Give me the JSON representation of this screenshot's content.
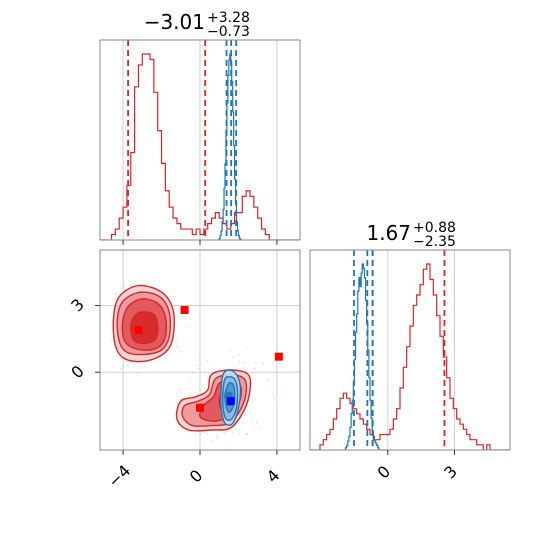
{
  "chart_data": {
    "type": "corner",
    "parameters": [
      {
        "title_main": "−3.01",
        "title_plus": "+3.28",
        "title_minus": "−0.73",
        "range": [
          -5.2,
          5.2
        ],
        "ticks": [
          -4,
          0,
          4
        ],
        "tick_labels": [
          "−4",
          "0",
          "4"
        ]
      },
      {
        "title_main": "1.67",
        "title_plus": "+0.88",
        "title_minus": "−2.35",
        "range": [
          -3.5,
          5.5
        ],
        "ticks": [
          0,
          3
        ],
        "tick_labels": [
          "0",
          "3"
        ]
      }
    ],
    "grid": true,
    "series": [
      {
        "color": "#d62728",
        "hist1": {
          "bin_start": -5.2,
          "bin_width": 0.2,
          "counts": [
            0,
            0,
            0,
            1,
            2,
            4,
            6,
            10,
            16,
            28,
            32,
            34,
            34,
            33,
            27,
            20,
            14,
            9,
            6,
            4,
            3,
            2,
            2,
            2,
            1,
            2,
            1,
            2,
            3,
            4,
            5,
            4,
            3,
            2,
            3,
            5,
            5,
            8,
            9,
            8,
            6,
            4,
            2,
            1,
            0,
            0,
            0,
            0,
            0,
            0,
            0,
            0
          ]
        },
        "hist1_lines": [
          -3.74,
          0.27
        ],
        "hist2": {
          "bin_start": -3.5,
          "bin_width": 0.15,
          "counts": [
            0,
            0,
            0,
            1,
            2,
            3,
            4,
            6,
            8,
            10,
            11,
            10,
            9,
            8,
            7,
            6,
            5,
            4,
            3,
            2,
            2,
            3,
            3,
            3,
            4,
            6,
            8,
            12,
            16,
            20,
            24,
            28,
            30,
            32,
            35,
            36,
            33,
            30,
            26,
            22,
            18,
            14,
            10,
            8,
            6,
            5,
            4,
            3,
            2,
            2,
            1,
            1,
            0,
            1,
            0,
            0,
            0,
            0,
            0,
            0
          ]
        },
        "hist2_lines": [
          -0.68,
          2.55
        ],
        "contour_fills": [
          "#f7cfd1",
          "#ef9498",
          "#e05257",
          "#d62728"
        ],
        "contour_stroke": "#d62728",
        "clusters": [
          {
            "name": "upper-left",
            "levels": [
              [
                [
                  -3.2,
                  3.9
                ],
                [
                  -2.0,
                  3.6
                ],
                [
                  -1.4,
                  2.8
                ],
                [
                  -1.4,
                  1.6
                ],
                [
                  -1.8,
                  0.9
                ],
                [
                  -2.8,
                  0.5
                ],
                [
                  -3.9,
                  0.6
                ],
                [
                  -4.4,
                  1.2
                ],
                [
                  -4.5,
                  2.4
                ],
                [
                  -4.2,
                  3.4
                ]
              ],
              [
                [
                  -3.1,
                  3.6
                ],
                [
                  -2.1,
                  3.4
                ],
                [
                  -1.6,
                  2.7
                ],
                [
                  -1.6,
                  1.6
                ],
                [
                  -2.0,
                  1.0
                ],
                [
                  -2.9,
                  0.8
                ],
                [
                  -3.8,
                  0.9
                ],
                [
                  -4.2,
                  1.4
                ],
                [
                  -4.3,
                  2.4
                ],
                [
                  -4.0,
                  3.2
                ]
              ],
              [
                [
                  -3.0,
                  3.3
                ],
                [
                  -2.2,
                  3.1
                ],
                [
                  -1.8,
                  2.5
                ],
                [
                  -1.8,
                  1.6
                ],
                [
                  -2.2,
                  1.1
                ],
                [
                  -3.0,
                  1.0
                ],
                [
                  -3.7,
                  1.2
                ],
                [
                  -4.0,
                  1.6
                ],
                [
                  -4.0,
                  2.4
                ],
                [
                  -3.7,
                  3.0
                ]
              ],
              [
                [
                  -3.1,
                  2.7
                ],
                [
                  -2.4,
                  2.6
                ],
                [
                  -2.2,
                  2.1
                ],
                [
                  -2.3,
                  1.5
                ],
                [
                  -2.8,
                  1.3
                ],
                [
                  -3.4,
                  1.4
                ],
                [
                  -3.6,
                  1.9
                ],
                [
                  -3.5,
                  2.4
                ]
              ]
            ]
          },
          {
            "name": "lower-middle",
            "levels": [
              [
                [
                  0.6,
                  -0.1
                ],
                [
                  1.6,
                  0.1
                ],
                [
                  2.5,
                  -0.1
                ],
                [
                  2.6,
                  -0.8
                ],
                [
                  2.3,
                  -1.7
                ],
                [
                  1.6,
                  -2.5
                ],
                [
                  0.6,
                  -2.6
                ],
                [
                  -0.6,
                  -2.6
                ],
                [
                  -1.2,
                  -2.1
                ],
                [
                  -1.0,
                  -1.3
                ],
                [
                  -0.2,
                  -1.1
                ],
                [
                  0.4,
                  -0.8
                ]
              ],
              [
                [
                  0.8,
                  -0.3
                ],
                [
                  1.6,
                  -0.1
                ],
                [
                  2.3,
                  -0.3
                ],
                [
                  2.4,
                  -0.9
                ],
                [
                  2.1,
                  -1.7
                ],
                [
                  1.5,
                  -2.3
                ],
                [
                  0.6,
                  -2.4
                ],
                [
                  -0.4,
                  -2.4
                ],
                [
                  -0.9,
                  -2.0
                ],
                [
                  -0.8,
                  -1.5
                ],
                [
                  -0.1,
                  -1.3
                ],
                [
                  0.5,
                  -1.0
                ]
              ],
              [
                [
                  1.0,
                  -0.5
                ],
                [
                  1.6,
                  -0.4
                ],
                [
                  2.1,
                  -0.6
                ],
                [
                  2.1,
                  -1.2
                ],
                [
                  1.8,
                  -1.8
                ],
                [
                  1.3,
                  -2.1
                ],
                [
                  0.6,
                  -2.2
                ],
                [
                  0.0,
                  -2.0
                ],
                [
                  0.2,
                  -1.5
                ],
                [
                  0.7,
                  -1.1
                ]
              ],
              [
                [
                  1.2,
                  -0.8
                ],
                [
                  1.7,
                  -0.8
                ],
                [
                  1.9,
                  -1.2
                ],
                [
                  1.7,
                  -1.7
                ],
                [
                  1.3,
                  -1.8
                ],
                [
                  1.0,
                  -1.4
                ]
              ]
            ]
          }
        ],
        "markers": [
          {
            "x": -3.2,
            "y": 1.9
          },
          {
            "x": -0.8,
            "y": 2.8
          },
          {
            "x": 0.0,
            "y": -1.6
          },
          {
            "x": 4.1,
            "y": 0.7
          }
        ]
      },
      {
        "color": "#1f77b4",
        "hist1": {
          "bin_start": 0.9,
          "bin_width": 0.05,
          "counts": [
            0,
            0,
            1,
            3,
            6,
            12,
            20,
            34,
            50,
            72,
            90,
            108,
            118,
            122,
            116,
            104,
            84,
            62,
            40,
            24,
            12,
            6,
            3,
            1,
            0,
            0
          ]
        },
        "hist1_lines": [
          1.38,
          1.62,
          1.88
        ],
        "hist2": {
          "bin_start": -2.0,
          "bin_width": 0.05,
          "counts": [
            0,
            0,
            1,
            2,
            4,
            6,
            10,
            16,
            22,
            30,
            40,
            52,
            60,
            70,
            76,
            72,
            78,
            82,
            80,
            76,
            66,
            56,
            44,
            32,
            22,
            14,
            8,
            6,
            4,
            3,
            2,
            1,
            0,
            0,
            0,
            0,
            0,
            0,
            0,
            0
          ]
        },
        "hist2_lines": [
          -1.52,
          -0.92,
          -0.68
        ],
        "contour_fills": [
          "#c5dcef",
          "#8ab9e0",
          "#4f93cc",
          "#1f77b4"
        ],
        "contour_stroke": "#1f77b4",
        "clusters": [
          {
            "name": "blue-core",
            "levels": [
              [
                [
                  1.5,
                  0.1
                ],
                [
                  1.9,
                  -0.1
                ],
                [
                  2.1,
                  -0.7
                ],
                [
                  2.0,
                  -1.6
                ],
                [
                  1.7,
                  -2.3
                ],
                [
                  1.3,
                  -2.3
                ],
                [
                  1.1,
                  -1.6
                ],
                [
                  1.1,
                  -0.7
                ],
                [
                  1.2,
                  -0.1
                ]
              ],
              [
                [
                  1.5,
                  -0.2
                ],
                [
                  1.8,
                  -0.3
                ],
                [
                  1.95,
                  -0.8
                ],
                [
                  1.9,
                  -1.6
                ],
                [
                  1.65,
                  -2.1
                ],
                [
                  1.35,
                  -2.1
                ],
                [
                  1.2,
                  -1.6
                ],
                [
                  1.2,
                  -0.8
                ],
                [
                  1.3,
                  -0.3
                ]
              ],
              [
                [
                  1.5,
                  -0.5
                ],
                [
                  1.75,
                  -0.6
                ],
                [
                  1.8,
                  -1.1
                ],
                [
                  1.7,
                  -1.6
                ],
                [
                  1.5,
                  -1.8
                ],
                [
                  1.35,
                  -1.5
                ],
                [
                  1.3,
                  -1.0
                ]
              ],
              [
                [
                  1.5,
                  -0.9
                ],
                [
                  1.65,
                  -1.0
                ],
                [
                  1.65,
                  -1.4
                ],
                [
                  1.5,
                  -1.5
                ],
                [
                  1.4,
                  -1.3
                ],
                [
                  1.4,
                  -1.0
                ]
              ]
            ]
          }
        ],
        "markers": [
          {
            "x": 1.6,
            "y": -1.3
          }
        ]
      }
    ]
  }
}
